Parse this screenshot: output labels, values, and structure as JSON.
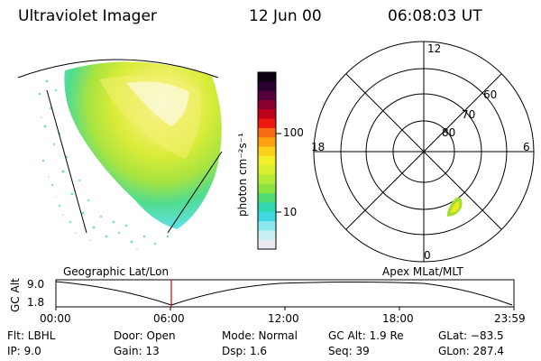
{
  "header": {
    "title": "Ultraviolet Imager",
    "date": "12 Jun 00",
    "time": "06:08:03 UT"
  },
  "left_panel": {
    "label": "Geographic Lat/Lon"
  },
  "right_panel": {
    "label": "Apex MLat/MLT",
    "hour_labels": {
      "top": "12",
      "left": "18",
      "right": "6",
      "bottom": "0"
    },
    "lat_labels": [
      "60",
      "70",
      "80"
    ]
  },
  "colorbar": {
    "unit_label": "photon cm⁻²s⁻¹",
    "tick_labels": [
      "100",
      "10"
    ],
    "colors": [
      "#0a0012",
      "#2a0030",
      "#55003a",
      "#8a0030",
      "#c00018",
      "#ec1810",
      "#f86a10",
      "#fca010",
      "#fcd018",
      "#f4f028",
      "#d8f030",
      "#b4ec38",
      "#8ce440",
      "#50dc70",
      "#30d8b0",
      "#40d8e0",
      "#8ce8f0",
      "#c8f0f4",
      "#ece8f0"
    ]
  },
  "timeline": {
    "axis_label": "GC Alt",
    "y_labels": [
      "9.0",
      "1.8"
    ],
    "x_labels": [
      "00:00",
      "06:00",
      "12:00",
      "18:00",
      "23:59"
    ],
    "marker_color": "#e00000"
  },
  "info": {
    "flt": "Flt:  LBHL",
    "ip": "IP:  9.0",
    "door": "Door:  Open",
    "gain": "Gain:  13",
    "mode": "Mode:  Normal",
    "dsp": "Dsp:     1.6",
    "gcalt": "GC Alt:  1.9 Re",
    "seq": "Seq:  39",
    "glat": "GLat:  −83.5",
    "glon": "GLon:  287.4"
  }
}
